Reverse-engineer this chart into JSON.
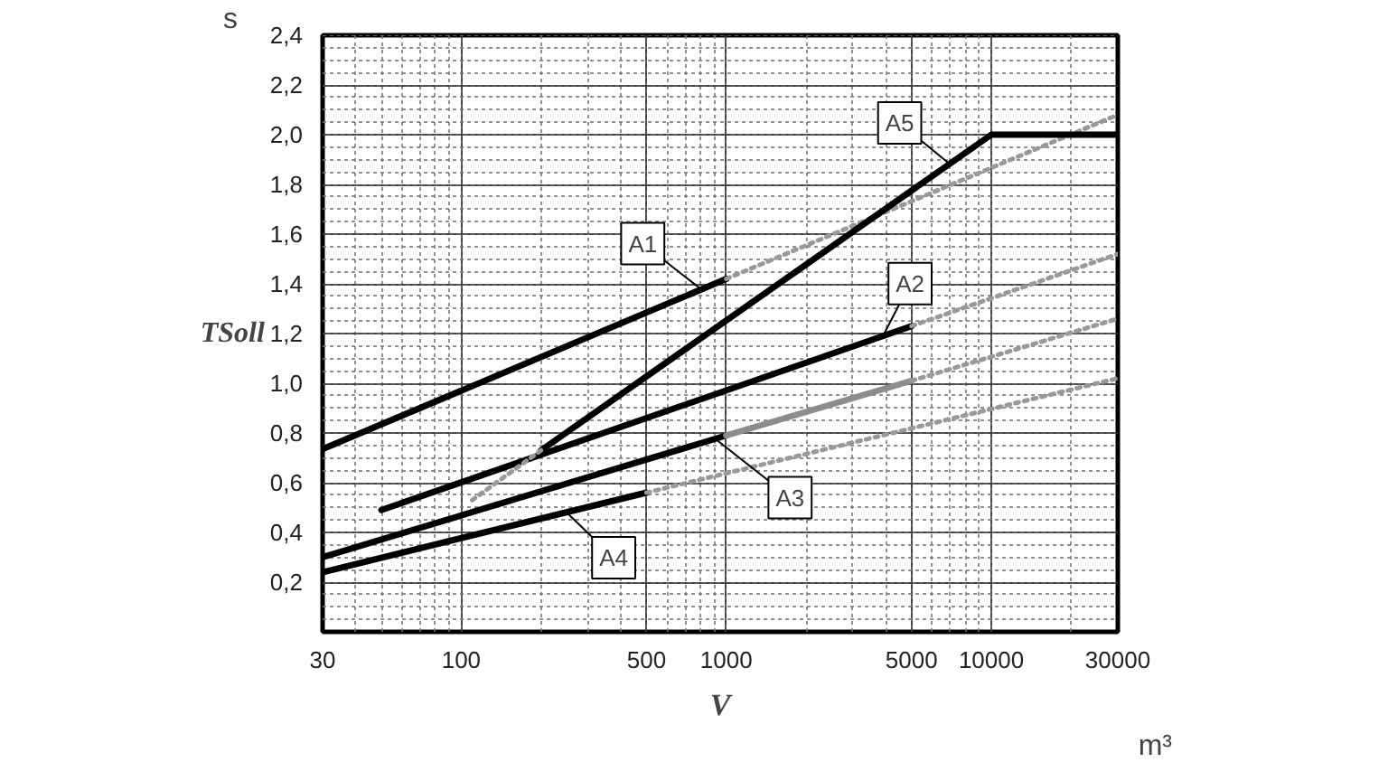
{
  "chart_data": {
    "type": "line",
    "xlabel": "V",
    "ylabel": "TSoll",
    "log": "x",
    "grid": true,
    "marker": "none",
    "xlim": [
      30,
      30000
    ],
    "xticks": [
      30,
      100,
      500,
      1000,
      5000,
      10000,
      30000
    ],
    "ylim": [
      0,
      2.4
    ],
    "yticks": [
      {
        "value": 0.2,
        "label": "0,2"
      },
      {
        "value": 0.4,
        "label": "0,4"
      },
      {
        "value": 0.6,
        "label": "0,6"
      },
      {
        "value": 0.8,
        "label": "0,8"
      },
      {
        "value": 1.0,
        "label": "1,0"
      },
      {
        "value": 1.2,
        "label": "1,2"
      },
      {
        "value": 1.4,
        "label": "1,4"
      },
      {
        "value": 1.6,
        "label": "1,6"
      },
      {
        "value": 1.8,
        "label": "1,8"
      },
      {
        "value": 2.0,
        "label": "2,0"
      },
      {
        "value": 2.2,
        "label": "2,2"
      },
      {
        "value": 2.4,
        "label": "2,4"
      }
    ],
    "series": [
      {
        "color": "#000000",
        "line_style": "solid",
        "x": [
          30,
          1000
        ],
        "values": [
          0.735,
          1.42
        ]
      },
      {
        "color": "#999999",
        "line_style": "dotted",
        "x": [
          1000,
          30000
        ],
        "values": [
          1.42,
          2.08
        ]
      },
      {
        "color": "#000000",
        "line_style": "solid",
        "x": [
          50,
          5000
        ],
        "values": [
          0.49,
          1.23
        ]
      },
      {
        "color": "#999999",
        "line_style": "dotted",
        "x": [
          5000,
          30000
        ],
        "values": [
          1.23,
          1.52
        ]
      },
      {
        "color": "#000000",
        "line_style": "solid",
        "x": [
          30,
          1000
        ],
        "values": [
          0.3,
          0.79
        ]
      },
      {
        "color": "#8c8c8c",
        "line_style": "solid",
        "x": [
          1000,
          5000
        ],
        "values": [
          0.79,
          1.01
        ]
      },
      {
        "color": "#999999",
        "line_style": "dotted",
        "x": [
          5000,
          30000
        ],
        "values": [
          1.01,
          1.26
        ]
      },
      {
        "color": "#000000",
        "line_style": "solid",
        "x": [
          30,
          500
        ],
        "values": [
          0.24,
          0.56
        ]
      },
      {
        "color": "#999999",
        "line_style": "dotted",
        "x": [
          500,
          30000
        ],
        "values": [
          0.56,
          1.02
        ]
      },
      {
        "color": "#000000",
        "line_style": "solid",
        "x": [
          200,
          10000,
          30000
        ],
        "values": [
          0.73,
          2.0,
          2.0
        ]
      },
      {
        "color": "#999999",
        "line_style": "dotted",
        "x": [
          110,
          200
        ],
        "values": [
          0.53,
          0.73
        ]
      }
    ],
    "annotations": [
      {
        "text": "A1",
        "x": 800,
        "y": 1.38
      },
      {
        "text": "A2",
        "x": 3900,
        "y": 1.19
      },
      {
        "text": "A3",
        "x": 900,
        "y": 0.78
      },
      {
        "text": "A4",
        "x": 250,
        "y": 0.48
      },
      {
        "text": "A5",
        "x": 7000,
        "y": 1.88
      },
      "s",
      "m³"
    ]
  }
}
